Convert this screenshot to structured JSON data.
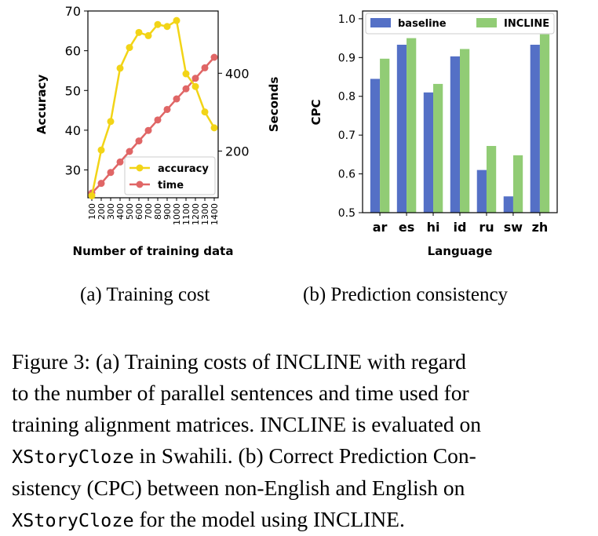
{
  "chart_data": [
    {
      "type": "line",
      "xlabel": "Number of training data",
      "ylabel": "Accuracy",
      "ylabel_right": "Seconds",
      "categories": [
        "100",
        "200",
        "300",
        "400",
        "500",
        "600",
        "700",
        "800",
        "900",
        "1000",
        "1100",
        "1200",
        "1300",
        "1400"
      ],
      "yticks": [
        "30",
        "40",
        "50",
        "60",
        "70"
      ],
      "ylim": [
        23,
        70
      ],
      "yticks_right": [
        "200",
        "400"
      ],
      "ylim_right": [
        80,
        560
      ],
      "legend_position": "lower-right",
      "grid": false,
      "series": [
        {
          "name": "accuracy",
          "axis": "left",
          "color": "#f2d417",
          "values": [
            23.5,
            35,
            42.2,
            55.6,
            60.8,
            64.6,
            63.8,
            66.6,
            66.1,
            67.6,
            54.2,
            51,
            44.6,
            40.6
          ]
        },
        {
          "name": "time",
          "axis": "right",
          "color": "#e06666",
          "values": [
            92,
            117,
            145,
            172,
            199,
            226,
            253,
            280,
            307,
            334,
            360,
            387,
            414,
            441
          ]
        }
      ]
    },
    {
      "type": "bar",
      "xlabel": "Language",
      "ylabel": "CPC",
      "categories": [
        "ar",
        "es",
        "hi",
        "id",
        "ru",
        "sw",
        "zh"
      ],
      "yticks": [
        "0.5",
        "0.6",
        "0.7",
        "0.8",
        "0.9",
        "1.0"
      ],
      "ylim": [
        0.5,
        1.02
      ],
      "legend_position": "top",
      "grid": false,
      "series": [
        {
          "name": "baseline",
          "color": "#5470c6",
          "values": [
            0.845,
            0.933,
            0.81,
            0.903,
            0.61,
            0.542,
            0.933
          ]
        },
        {
          "name": "INCLINE",
          "color": "#91cc75",
          "values": [
            0.897,
            0.95,
            0.832,
            0.922,
            0.672,
            0.648,
            0.96
          ]
        }
      ]
    }
  ],
  "subcaptions": {
    "a": "(a)  Training cost",
    "b": "(b)  Prediction consistency"
  },
  "caption": {
    "line1": "Figure 3: (a) Training costs of INCLINE with regard",
    "line2": "to the number of parallel sentences and time used for",
    "line3": "training alignment matrices. INCLINE is evaluated on",
    "line4_mono": "XStoryCloze",
    "line4_rest": " in Swahili.  (b) Correct Prediction Con-",
    "line5": "sistency (CPC) between non-English and English on",
    "line6_mono": "XStoryCloze",
    "line6_rest": " for the model using INCLINE."
  }
}
